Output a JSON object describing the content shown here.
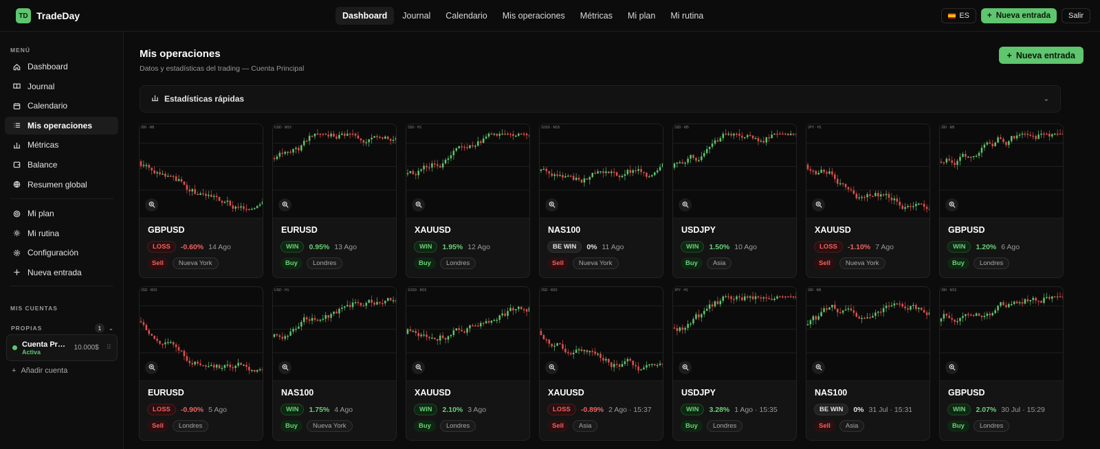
{
  "app": {
    "logo_mark": "TD",
    "name": "TradeDay"
  },
  "nav": [
    "Dashboard",
    "Journal",
    "Calendario",
    "Mis operaciones",
    "Métricas",
    "Mi plan",
    "Mi rutina"
  ],
  "topbar": {
    "lang": "ES",
    "new_entry": "Nueva entrada",
    "logout": "Salir"
  },
  "sidebar": {
    "menu_label": "MENÚ",
    "items1": [
      {
        "label": "Dashboard",
        "icon": "home-icon"
      },
      {
        "label": "Journal",
        "icon": "book-icon"
      },
      {
        "label": "Calendario",
        "icon": "calendar-icon"
      },
      {
        "label": "Mis operaciones",
        "icon": "list-icon"
      },
      {
        "label": "Métricas",
        "icon": "bar-chart-icon"
      },
      {
        "label": "Balance",
        "icon": "wallet-icon"
      },
      {
        "label": "Resumen global",
        "icon": "globe-icon"
      }
    ],
    "items2": [
      {
        "label": "Mi plan",
        "icon": "target-icon"
      },
      {
        "label": "Mi rutina",
        "icon": "sun-icon"
      },
      {
        "label": "Configuración",
        "icon": "gear-icon"
      },
      {
        "label": "Nueva entrada",
        "icon": "plus-icon"
      }
    ],
    "accounts_label": "MIS CUENTAS",
    "own_label": "PROPIAS",
    "own_count": "1",
    "account": {
      "name": "Cuenta Principal",
      "status": "Activa",
      "balance": "10.000$"
    },
    "add_account": "Añadir cuenta"
  },
  "main": {
    "title": "Mis operaciones",
    "subtitle": "Datos y estadísticas del trading — Cuenta Principal",
    "new_entry": "Nueva entrada",
    "quick_stats": "Estadísticas rápidas"
  },
  "trades": [
    {
      "symbol": "GBPUSD",
      "result": "LOSS",
      "pct": "-0.60%",
      "date": "14 Ago",
      "side": "Sell",
      "session": "Nueva York",
      "chart": "J00 · M5"
    },
    {
      "symbol": "EURUSD",
      "result": "WIN",
      "pct": "0.95%",
      "date": "13 Ago",
      "side": "Buy",
      "session": "Londres",
      "chart": "USD · M15"
    },
    {
      "symbol": "XAUUSD",
      "result": "WIN",
      "pct": "1.95%",
      "date": "12 Ago",
      "side": "Buy",
      "session": "Londres",
      "chart": "JSD · H1"
    },
    {
      "symbol": "NAS100",
      "result": "BE WIN",
      "pct": "0%",
      "date": "11 Ago",
      "side": "Sell",
      "session": "Nueva York",
      "chart": "JUSD · M15"
    },
    {
      "symbol": "USDJPY",
      "result": "WIN",
      "pct": "1.50%",
      "date": "10 Ago",
      "side": "Buy",
      "session": "Asia",
      "chart": "JSD · M5"
    },
    {
      "symbol": "XAUUSD",
      "result": "LOSS",
      "pct": "-1.10%",
      "date": "7 Ago",
      "side": "Sell",
      "session": "Nueva York",
      "chart": "JPY · H1"
    },
    {
      "symbol": "GBPUSD",
      "result": "WIN",
      "pct": "1.20%",
      "date": "6 Ago",
      "side": "Buy",
      "session": "Londres",
      "chart": "J00 · M5"
    },
    {
      "symbol": "EURUSD",
      "result": "LOSS",
      "pct": "-0.90%",
      "date": "5 Ago",
      "side": "Sell",
      "session": "Londres",
      "chart": "JSD · M15"
    },
    {
      "symbol": "NAS100",
      "result": "WIN",
      "pct": "1.75%",
      "date": "4 Ago",
      "side": "Buy",
      "session": "Nueva York",
      "chart": "USD · H1"
    },
    {
      "symbol": "XAUUSD",
      "result": "WIN",
      "pct": "2.10%",
      "date": "3 Ago",
      "side": "Buy",
      "session": "Londres",
      "chart": "JUSD · M15"
    },
    {
      "symbol": "XAUUSD",
      "result": "LOSS",
      "pct": "-0.89%",
      "date": "2 Ago · 15:37",
      "side": "Sell",
      "session": "Asia",
      "chart": "JSD · M15"
    },
    {
      "symbol": "USDJPY",
      "result": "WIN",
      "pct": "3.28%",
      "date": "1 Ago · 15:35",
      "side": "Buy",
      "session": "Londres",
      "chart": "JPY · H1"
    },
    {
      "symbol": "NAS100",
      "result": "BE WIN",
      "pct": "0%",
      "date": "31 Jul · 15:31",
      "side": "Sell",
      "session": "Asia",
      "chart": "J00 · M5"
    },
    {
      "symbol": "GBPUSD",
      "result": "WIN",
      "pct": "2.07%",
      "date": "30 Jul · 15:29",
      "side": "Buy",
      "session": "Londres",
      "chart": "J00 · M15"
    }
  ],
  "colors": {
    "accent": "#5fc56e",
    "loss": "#f0625f",
    "bg": "#0c0c0c"
  }
}
